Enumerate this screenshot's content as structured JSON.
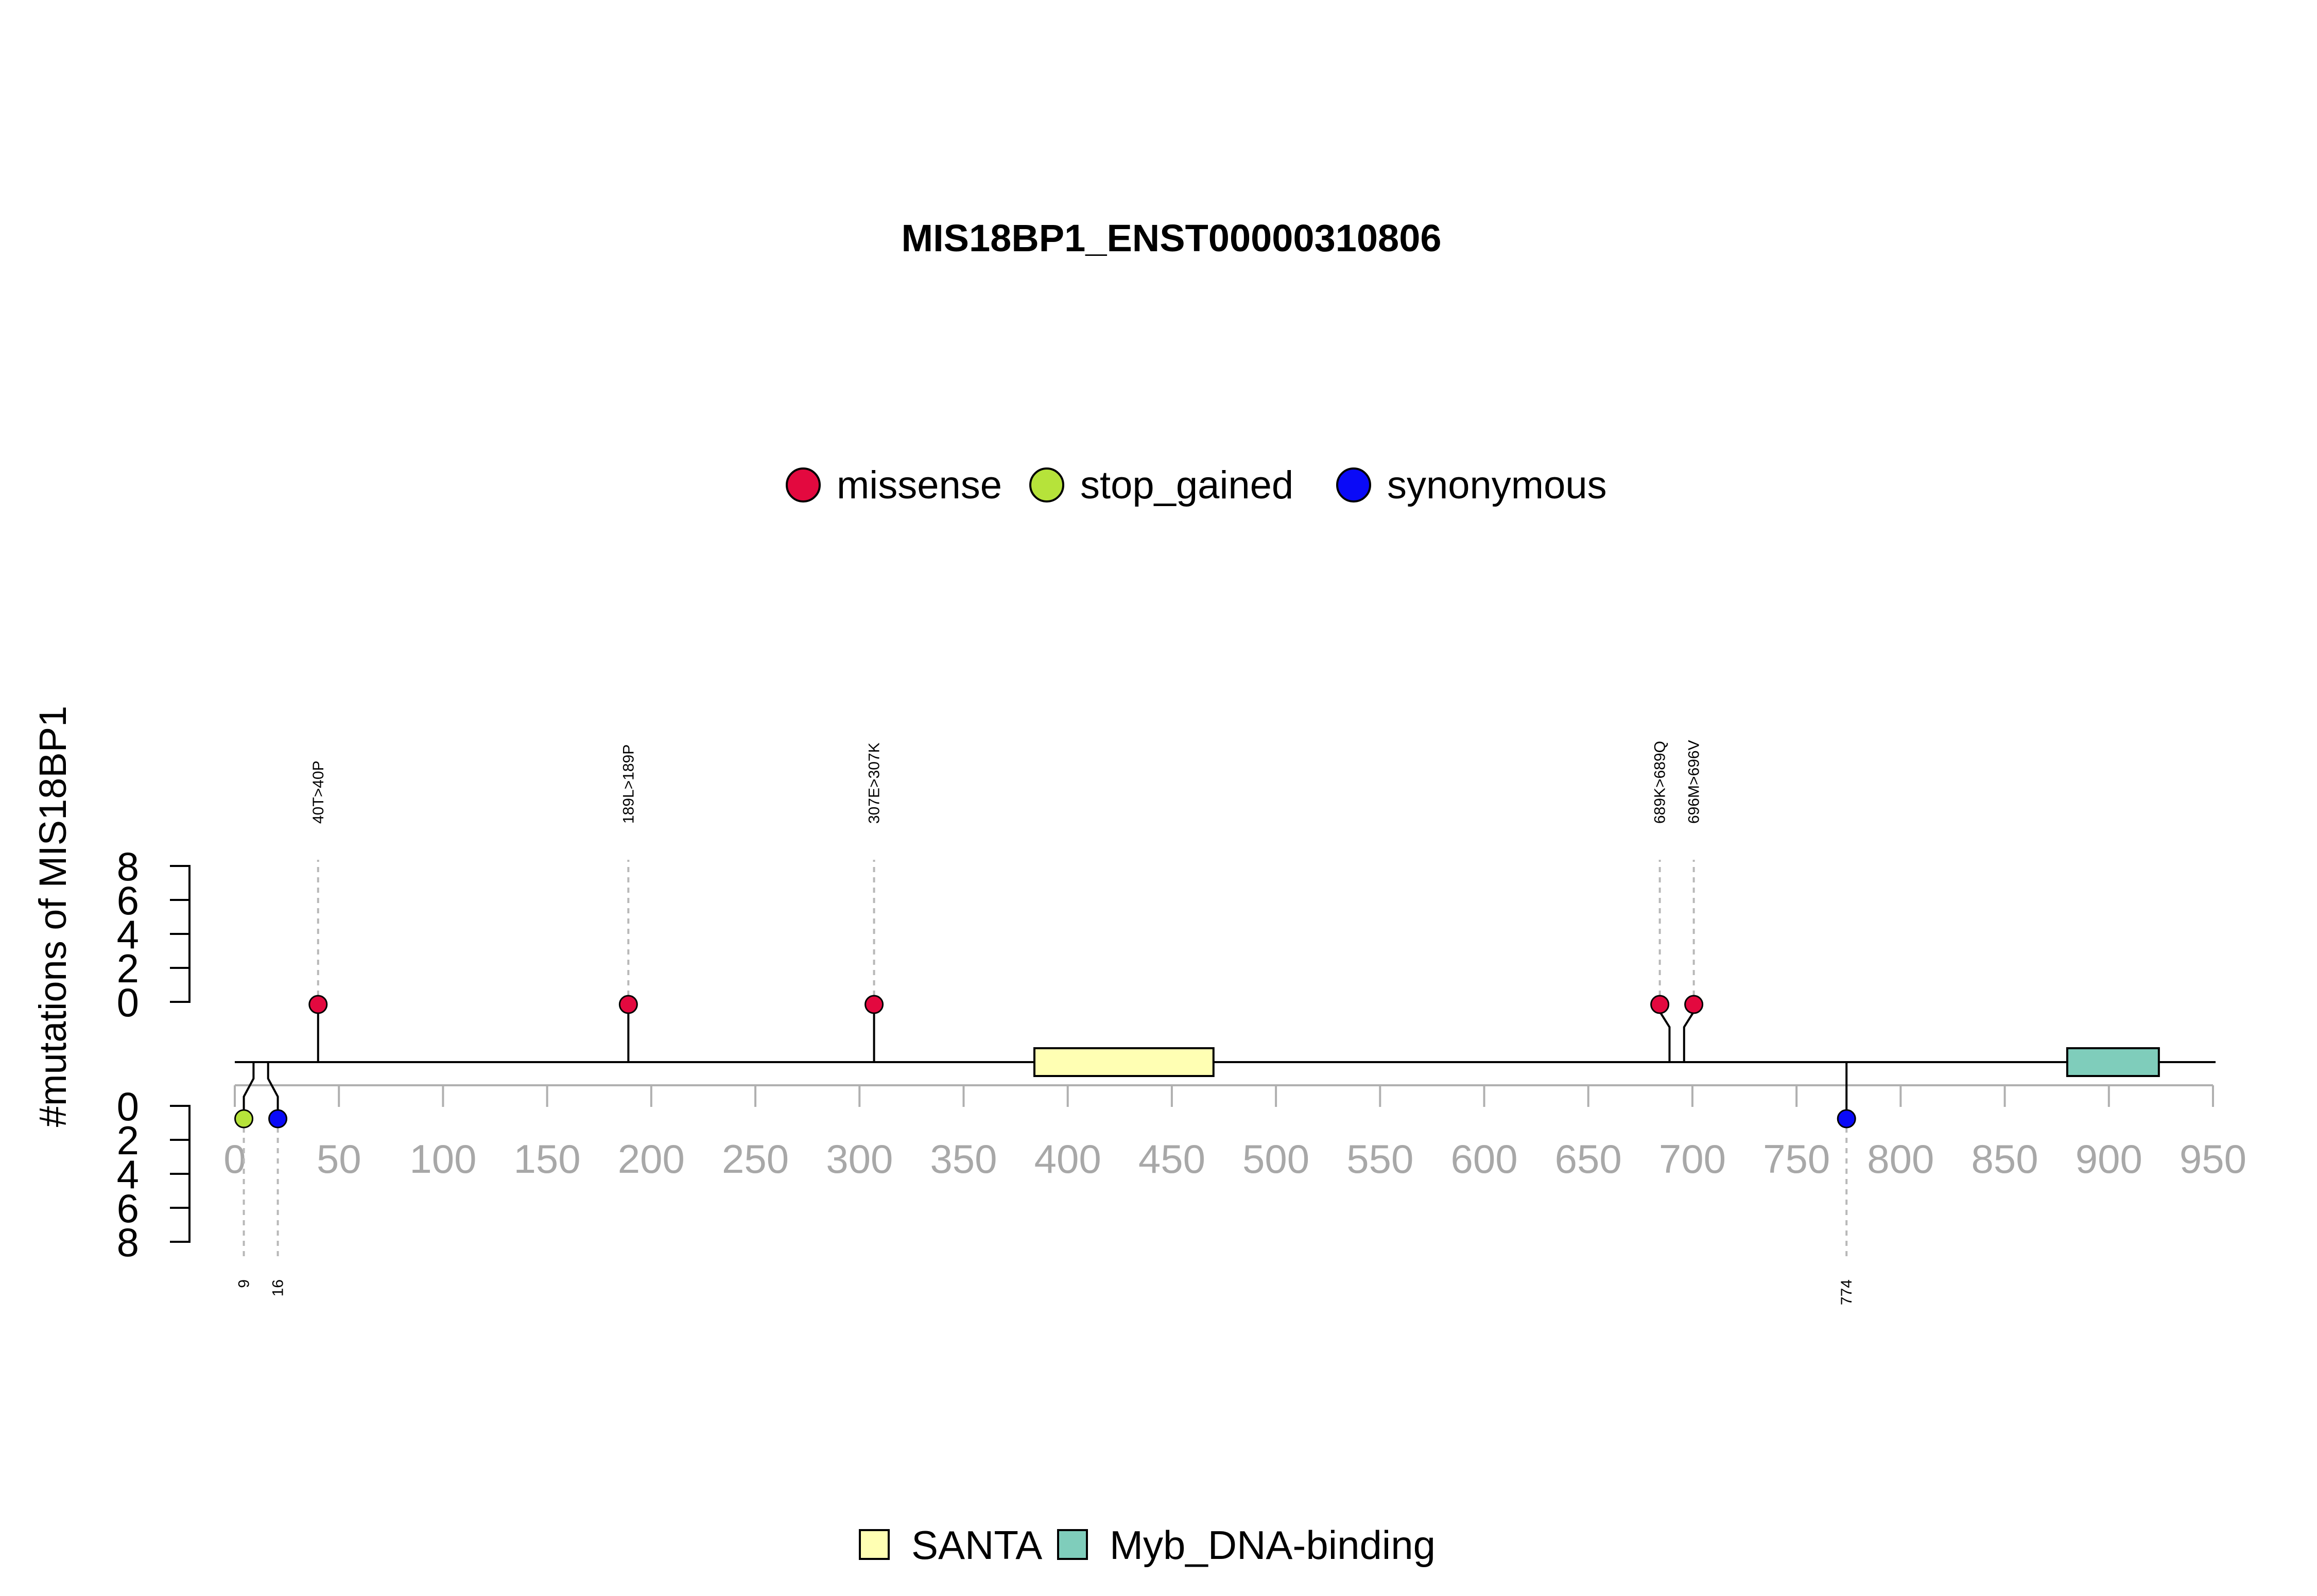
{
  "chart_data": {
    "type": "lollipop",
    "title": "MIS18BP1_ENST00000310806",
    "ylabel": "#mutations of MIS18BP1",
    "xlabel": "",
    "x_range": [
      0,
      950
    ],
    "x_ticks": [
      0,
      50,
      100,
      150,
      200,
      250,
      300,
      350,
      400,
      450,
      500,
      550,
      600,
      650,
      700,
      750,
      800,
      850,
      900,
      950
    ],
    "y_ticks_top": [
      0,
      2,
      4,
      6,
      8
    ],
    "y_ticks_bottom": [
      0,
      2,
      4,
      6,
      8
    ],
    "protein_length": 950,
    "legend": [
      {
        "name": "missense",
        "color": "#E3093F"
      },
      {
        "name": "stop_gained",
        "color": "#B6E33A"
      },
      {
        "name": "synonymous",
        "color": "#0A0AF7"
      }
    ],
    "mutations_top": [
      {
        "pos": 40,
        "label": "40T>40P",
        "type": "missense",
        "count": 1
      },
      {
        "pos": 189,
        "label": "189L>189P",
        "type": "missense",
        "count": 1
      },
      {
        "pos": 307,
        "label": "307E>307K",
        "type": "missense",
        "count": 1
      },
      {
        "pos": 689,
        "label": "689K>689Q",
        "type": "missense",
        "count": 1
      },
      {
        "pos": 696,
        "label": "696M>696V",
        "type": "missense",
        "count": 1
      }
    ],
    "mutations_bottom": [
      {
        "pos": 9,
        "label": "9",
        "type": "stop_gained",
        "count": 1
      },
      {
        "pos": 16,
        "label": "16",
        "type": "synonymous",
        "count": 1
      },
      {
        "pos": 774,
        "label": "774",
        "type": "synonymous",
        "count": 1
      }
    ],
    "domains": [
      {
        "name": "SANTA",
        "start": 384,
        "end": 470,
        "color": "#FFFFB3"
      },
      {
        "name": "Myb_DNA-binding",
        "start": 880,
        "end": 924,
        "color": "#7FCDBB"
      }
    ]
  }
}
